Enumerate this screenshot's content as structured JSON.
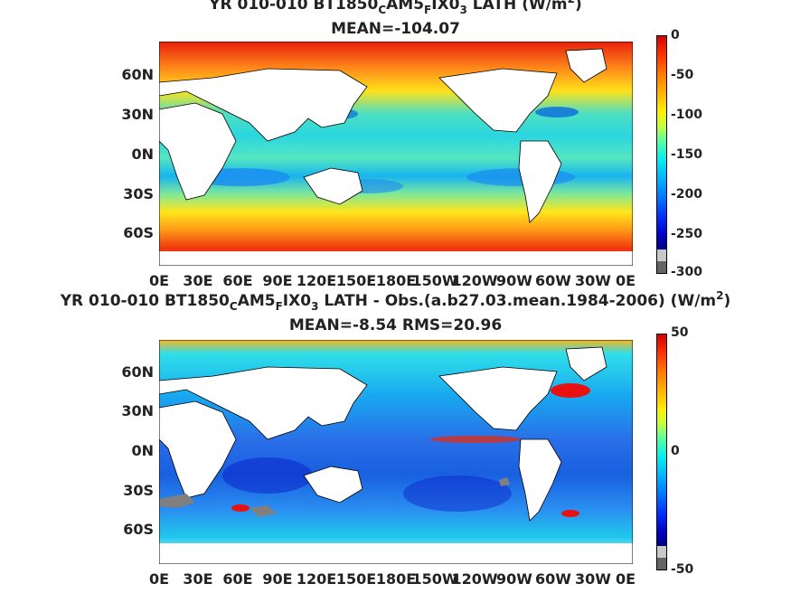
{
  "panels": [
    {
      "title_parts": [
        "YR 010-010 BT1850",
        "C",
        "AM5",
        "F",
        "IX0",
        "3",
        "  LATH (W/m",
        "2",
        ")"
      ],
      "subtitle": "MEAN=-104.07",
      "colorbar_ticks": [
        "0",
        "-50",
        "-100",
        "-150",
        "-200",
        "-250",
        "-300"
      ]
    },
    {
      "title_parts": [
        "YR 010-010 BT1850",
        "C",
        "AM5",
        "F",
        "IX0",
        "3",
        " LATH - Obs.(a.b27.03.mean.1984-2006) (W/m",
        "2",
        ")"
      ],
      "subtitle": "MEAN=-8.54 RMS=20.96",
      "colorbar_ticks": [
        "50",
        "0",
        "-50"
      ]
    }
  ],
  "lat_labels": [
    "60N",
    "30N",
    "0N",
    "30S",
    "60S"
  ],
  "lon_labels": [
    "0E",
    "30E",
    "60E",
    "90E",
    "120E",
    "150E",
    "180E",
    "150W",
    "120W",
    "90W",
    "60W",
    "30W",
    "0E"
  ]
}
